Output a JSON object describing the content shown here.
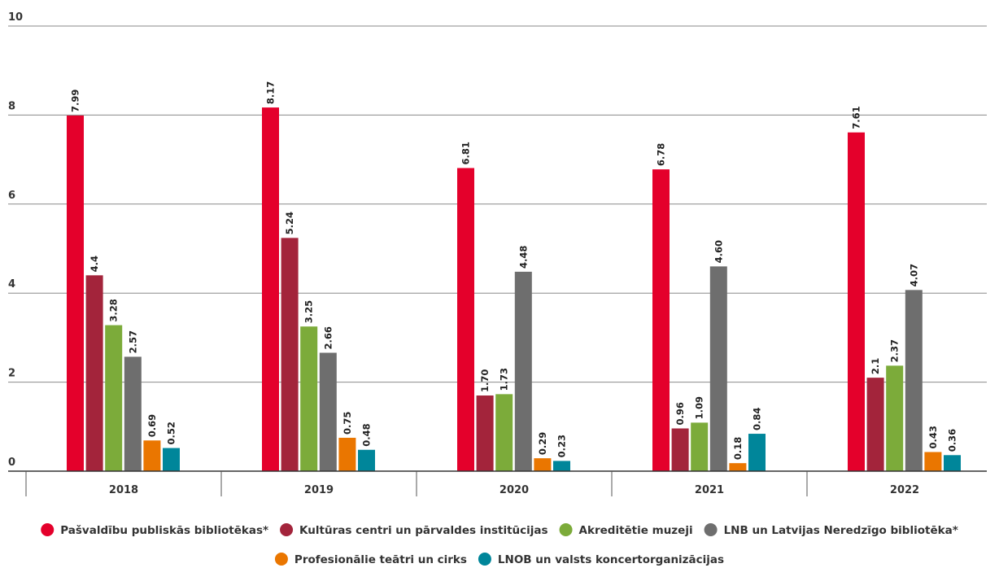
{
  "chart_data": {
    "type": "bar",
    "categories": [
      "2018",
      "2019",
      "2020",
      "2021",
      "2022"
    ],
    "y_ticks": [
      "0",
      "2",
      "4",
      "6",
      "8",
      "10"
    ],
    "ylim": [
      0,
      10
    ],
    "grid": true,
    "legend_position": "bottom",
    "series": [
      {
        "name": "Pašvaldību publiskās bibliotēkas*",
        "color": "#e4002b",
        "values": [
          7.99,
          8.17,
          6.81,
          6.78,
          7.61
        ],
        "labels": [
          "7.99",
          "8.17",
          "6.81",
          "6.78",
          "7.61"
        ]
      },
      {
        "name": "Kultūras centri un pārvaldes institūcijas",
        "color": "#a3243b",
        "values": [
          4.4,
          5.24,
          1.7,
          0.96,
          2.1
        ],
        "labels": [
          "4.4",
          "5.24",
          "1.70",
          "0.96",
          "2.1"
        ]
      },
      {
        "name": "Akreditētie muzeji",
        "color": "#7cab3a",
        "values": [
          3.28,
          3.25,
          1.73,
          1.09,
          2.37
        ],
        "labels": [
          "3.28",
          "3.25",
          "1.73",
          "1.09",
          "2.37"
        ]
      },
      {
        "name": "LNB un Latvijas Neredzīgo bibliotēka*",
        "color": "#6e6e6e",
        "values": [
          2.57,
          2.66,
          4.48,
          4.6,
          4.07
        ],
        "labels": [
          "2.57",
          "2.66",
          "4.48",
          "4.60",
          "4.07"
        ]
      },
      {
        "name": "Profesionālie teātri un cirks",
        "color": "#ea7600",
        "values": [
          0.69,
          0.75,
          0.29,
          0.18,
          0.43
        ],
        "labels": [
          "0.69",
          "0.75",
          "0.29",
          "0.18",
          "0.43"
        ]
      },
      {
        "name": "LNOB un valsts koncertorganizācijas",
        "color": "#00869a",
        "values": [
          0.52,
          0.48,
          0.23,
          0.84,
          0.36
        ],
        "labels": [
          "0.52",
          "0.48",
          "0.23",
          "0.84",
          "0.36"
        ]
      }
    ]
  }
}
